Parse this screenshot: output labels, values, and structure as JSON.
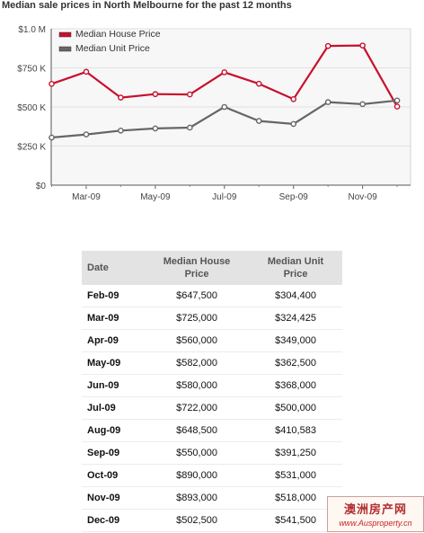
{
  "chart_data": {
    "type": "line",
    "title": "Median sale prices in North Melbourne for the past 12 months",
    "categories": [
      "Feb-09",
      "Mar-09",
      "Apr-09",
      "May-09",
      "Jun-09",
      "Jul-09",
      "Aug-09",
      "Sep-09",
      "Oct-09",
      "Nov-09",
      "Dec-09"
    ],
    "x_tick_labels": [
      "Mar-09",
      "May-09",
      "Jul-09",
      "Sep-09",
      "Nov-09"
    ],
    "y_ticks": [
      0,
      250000,
      500000,
      750000,
      1000000
    ],
    "y_tick_labels": [
      "$0",
      "$250 K",
      "$500 K",
      "$750 K",
      "$1.0 M"
    ],
    "ylim": [
      0,
      1000000
    ],
    "grid": true,
    "legend_position": "top-left",
    "series": [
      {
        "name": "Median House Price",
        "color": "#c8102e",
        "values": [
          647500,
          725000,
          560000,
          582000,
          580000,
          722000,
          648500,
          550000,
          890000,
          893000,
          502500
        ]
      },
      {
        "name": "Median Unit Price",
        "color": "#666666",
        "values": [
          304400,
          324425,
          349000,
          362500,
          368000,
          500000,
          410583,
          391250,
          531000,
          518000,
          541500
        ]
      }
    ]
  },
  "table": {
    "headers": [
      "Date",
      "Median House Price",
      "Median Unit Price"
    ],
    "rows": [
      [
        "Feb-09",
        "$647,500",
        "$304,400"
      ],
      [
        "Mar-09",
        "$725,000",
        "$324,425"
      ],
      [
        "Apr-09",
        "$560,000",
        "$349,000"
      ],
      [
        "May-09",
        "$582,000",
        "$362,500"
      ],
      [
        "Jun-09",
        "$580,000",
        "$368,000"
      ],
      [
        "Jul-09",
        "$722,000",
        "$500,000"
      ],
      [
        "Aug-09",
        "$648,500",
        "$410,583"
      ],
      [
        "Sep-09",
        "$550,000",
        "$391,250"
      ],
      [
        "Oct-09",
        "$890,000",
        "$531,000"
      ],
      [
        "Nov-09",
        "$893,000",
        "$518,000"
      ],
      [
        "Dec-09",
        "$502,500",
        "$541,500"
      ]
    ]
  },
  "watermark": {
    "line1": "澳洲房产网",
    "line2": "www.Ausproperty.cn"
  }
}
